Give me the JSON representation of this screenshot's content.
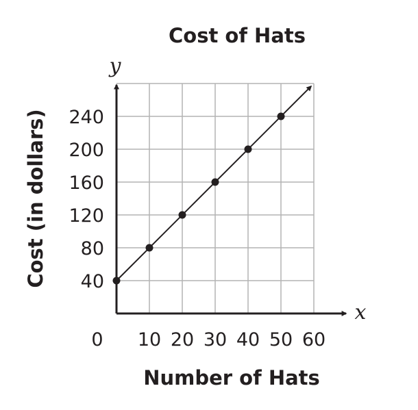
{
  "chart_data": {
    "type": "line",
    "title": "Cost of Hats",
    "xlabel": "Number of Hats",
    "ylabel": "Cost (in dollars)",
    "x_axis_var": "x",
    "y_axis_var": "y",
    "x_ticks": [
      "0",
      "10",
      "20",
      "30",
      "40",
      "50",
      "60"
    ],
    "y_ticks": [
      "40",
      "80",
      "120",
      "160",
      "200",
      "240"
    ],
    "xlim": [
      0,
      60
    ],
    "ylim": [
      0,
      280
    ],
    "grid": true,
    "series": [
      {
        "x": [
          0,
          10,
          20,
          30,
          40,
          50
        ],
        "y": [
          40,
          80,
          120,
          160,
          200,
          240
        ],
        "arrow_to": [
          60,
          280
        ]
      }
    ],
    "colors": {
      "ink": "#231f20",
      "grid": "#b3b3b3"
    }
  }
}
